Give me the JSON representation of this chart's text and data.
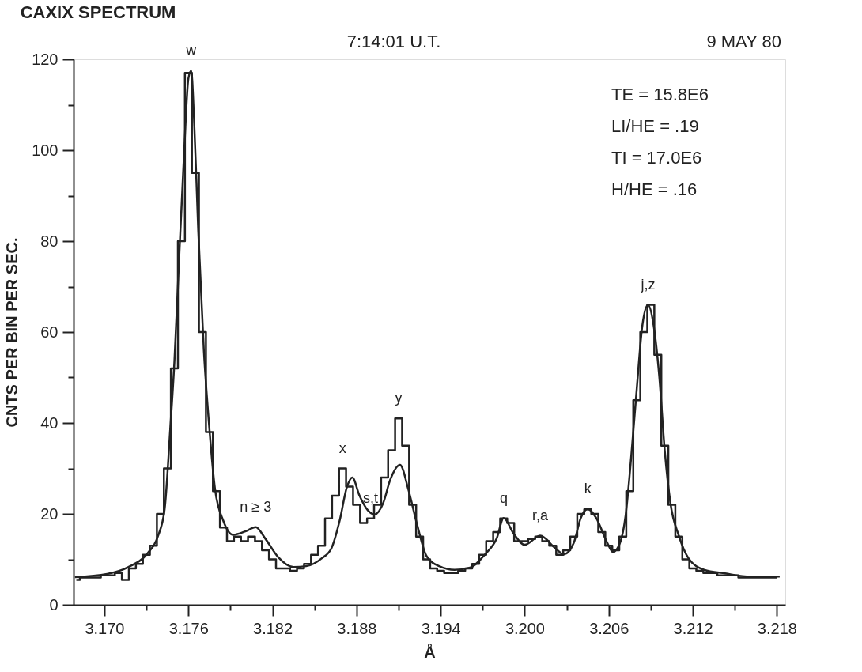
{
  "chart_data": {
    "type": "line",
    "title": "CAXIX SPECTRUM",
    "xlabel": "Å",
    "ylabel": "CNTS PER BIN PER SEC.",
    "xlim": [
      3.1678,
      3.2186
    ],
    "ylim": [
      0,
      120
    ],
    "xticks": [
      {
        "value": 3.17,
        "label": "3.170"
      },
      {
        "value": 3.173,
        "label": null
      },
      {
        "value": 3.176,
        "label": "3.176"
      },
      {
        "value": 3.179,
        "label": null
      },
      {
        "value": 3.182,
        "label": "3.182"
      },
      {
        "value": 3.185,
        "label": null
      },
      {
        "value": 3.188,
        "label": "3.188"
      },
      {
        "value": 3.191,
        "label": null
      },
      {
        "value": 3.194,
        "label": "3.194"
      },
      {
        "value": 3.197,
        "label": null
      },
      {
        "value": 3.2,
        "label": "3.200"
      },
      {
        "value": 3.203,
        "label": null
      },
      {
        "value": 3.206,
        "label": "3.206"
      },
      {
        "value": 3.209,
        "label": null
      },
      {
        "value": 3.212,
        "label": "3.212"
      },
      {
        "value": 3.215,
        "label": null
      },
      {
        "value": 3.218,
        "label": "3.218"
      }
    ],
    "yticks": [
      0,
      {
        "value": 10,
        "label": null
      },
      20,
      {
        "value": 30,
        "label": null
      },
      40,
      {
        "value": 50,
        "label": null
      },
      60,
      {
        "value": 70,
        "label": null
      },
      80,
      {
        "value": 90,
        "label": null
      },
      100,
      {
        "value": 110,
        "label": null
      },
      120
    ],
    "grid": false,
    "marker": "none",
    "line_style": "solid",
    "series": [
      {
        "type": "step",
        "color": "#222222",
        "x": [
          3.168,
          3.1685,
          3.169,
          3.1695,
          3.17,
          3.1705,
          3.171,
          3.1715,
          3.172,
          3.1725,
          3.173,
          3.1735,
          3.174,
          3.1745,
          3.175,
          3.1755,
          3.176,
          3.1765,
          3.177,
          3.1775,
          3.178,
          3.1785,
          3.179,
          3.1795,
          3.18,
          3.1805,
          3.181,
          3.1815,
          3.182,
          3.1825,
          3.183,
          3.1835,
          3.184,
          3.1845,
          3.185,
          3.1855,
          3.186,
          3.1865,
          3.187,
          3.1875,
          3.188,
          3.1885,
          3.189,
          3.1895,
          3.19,
          3.1905,
          3.191,
          3.1915,
          3.192,
          3.1925,
          3.193,
          3.1935,
          3.194,
          3.1945,
          3.195,
          3.1955,
          3.196,
          3.1965,
          3.197,
          3.1975,
          3.198,
          3.1985,
          3.199,
          3.1995,
          3.2,
          3.2005,
          3.201,
          3.2015,
          3.202,
          3.2025,
          3.203,
          3.2035,
          3.204,
          3.2045,
          3.205,
          3.2055,
          3.206,
          3.2065,
          3.207,
          3.2075,
          3.208,
          3.2085,
          3.209,
          3.2095,
          3.21,
          3.2105,
          3.211,
          3.2115,
          3.212,
          3.2125,
          3.213,
          3.2135,
          3.214,
          3.2145,
          3.215,
          3.2155,
          3.216,
          3.2165,
          3.217,
          3.2175,
          3.218
        ],
        "values": [
          5.5,
          6,
          6,
          6,
          6.5,
          6.5,
          7,
          5.5,
          8,
          9,
          11,
          13,
          20,
          30,
          52,
          80,
          117,
          95,
          60,
          38,
          25,
          17,
          14,
          15,
          14,
          15,
          14,
          12,
          10,
          8,
          8,
          7.5,
          8,
          9,
          11,
          13,
          19,
          24,
          30,
          26,
          22,
          18,
          19,
          22,
          28,
          34,
          41,
          35,
          22,
          15,
          10,
          8,
          7.5,
          7,
          7,
          7.5,
          8,
          9,
          11,
          14,
          16,
          19,
          18,
          14,
          14,
          14.5,
          15,
          14,
          13,
          11,
          12,
          15,
          20,
          21,
          20,
          16,
          13,
          12,
          15,
          25,
          45,
          60,
          66,
          55,
          35,
          22,
          15,
          10,
          8,
          7.5,
          7,
          7,
          6.5,
          6.5,
          6.5,
          6,
          6,
          6,
          6,
          6,
          6
        ]
      },
      {
        "color": "#222222",
        "x": [
          3.1679,
          3.1702,
          3.1717,
          3.1731,
          3.1738,
          3.1743,
          3.1747,
          3.175,
          3.1753,
          3.1757,
          3.176,
          3.1762,
          3.1764,
          3.1767,
          3.1771,
          3.1775,
          3.1779,
          3.1785,
          3.1792,
          3.1801,
          3.1808,
          3.1815,
          3.1824,
          3.1835,
          3.1844,
          3.1855,
          3.1862,
          3.1868,
          3.1873,
          3.1877,
          3.1882,
          3.1888,
          3.1893,
          3.1899,
          3.1904,
          3.1911,
          3.1917,
          3.1923,
          3.193,
          3.1939,
          3.195,
          3.1961,
          3.1972,
          3.198,
          3.1985,
          3.1992,
          3.2,
          3.2011,
          3.2022,
          3.2028,
          3.2035,
          3.204,
          3.2045,
          3.2051,
          3.2059,
          3.2063,
          3.2068,
          3.2072,
          3.2076,
          3.208,
          3.2084,
          3.2088,
          3.2092,
          3.2096,
          3.21,
          3.2104,
          3.211,
          3.2117,
          3.2128,
          3.2143,
          3.2161,
          3.2182
        ],
        "values": [
          6.1,
          6.8,
          8.3,
          11.4,
          14.9,
          21,
          38.6,
          53.5,
          73.7,
          100,
          115.8,
          117.5,
          107,
          82.5,
          56,
          38.6,
          25.4,
          18.4,
          15.4,
          16.2,
          17.1,
          14.5,
          10.5,
          8.3,
          8.5,
          10.2,
          12.4,
          18.6,
          25.8,
          28,
          24.1,
          20.8,
          19.9,
          22.4,
          27.5,
          30.8,
          25.3,
          17.9,
          10.7,
          8.5,
          7.7,
          8.2,
          11.2,
          14.6,
          19.1,
          15.7,
          13.2,
          15.2,
          12.4,
          11.1,
          13.6,
          19.1,
          21.1,
          19.1,
          13.6,
          11.6,
          13.6,
          19.6,
          32.5,
          47.6,
          61.5,
          66,
          61.5,
          50.4,
          33.7,
          22.4,
          15.2,
          10.2,
          7.7,
          6.9,
          6.2,
          6.2
        ]
      }
    ],
    "annotations": [
      "7:14:01 U.T.",
      "9 MAY 80",
      "TE = 15.8E6",
      "LI/HE = .19",
      "TI =  17.0E6",
      "H/HE = .16",
      {
        "text": "w",
        "x": 3.1762,
        "y": 117.5
      },
      {
        "text": "n ≥ 3",
        "x": 3.1808,
        "y": 17.1
      },
      {
        "text": "x",
        "x": 3.187,
        "y": 30
      },
      {
        "text": "s,t",
        "x": 3.189,
        "y": 19
      },
      {
        "text": "y",
        "x": 3.191,
        "y": 41
      },
      {
        "text": "q",
        "x": 3.1985,
        "y": 19
      },
      {
        "text": "r,a",
        "x": 3.2011,
        "y": 15.2
      },
      {
        "text": "k",
        "x": 3.2045,
        "y": 21.1
      },
      {
        "text": "j,z",
        "x": 3.2088,
        "y": 66
      }
    ]
  }
}
